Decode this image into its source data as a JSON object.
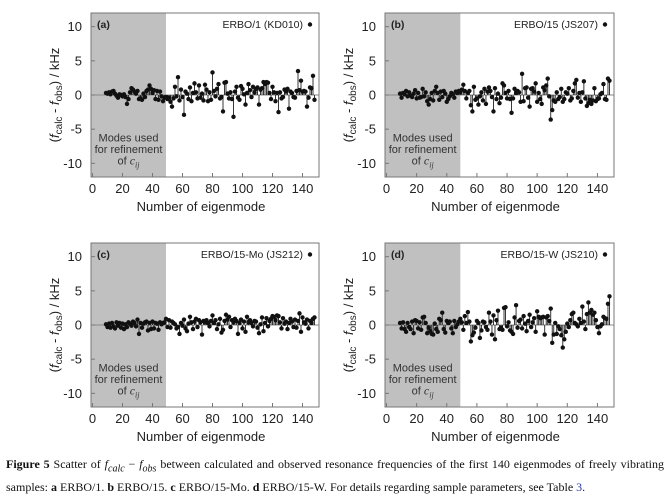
{
  "figure": {
    "caption": {
      "label": "Figure 5",
      "t1": " Scatter of ",
      "f1": "f",
      "s1": "calc",
      "minus": " − ",
      "f2": "f",
      "s2": "obs",
      "t2": " between calculated and observed resonance frequencies of the first 140 eigenmodes of freely vibrating samples: ",
      "a": "a",
      "ta": " ERBO/1. ",
      "b": "b",
      "tb": " ERBO/15. ",
      "c": "c",
      "tc": " ERBO/15-Mo. ",
      "d": "d",
      "td": " ERBO/15-W. For details regarding sample parameters, see Table ",
      "table_ref": "3",
      "end": "."
    }
  },
  "chart_data": [
    {
      "type": "scatter",
      "style": "stem",
      "panel_label": "(a)",
      "legend": "ERBO/1 (KD010)",
      "legend_placement": "top-right",
      "xlabel": "Number of eigenmode",
      "ylabel_parts": [
        "(",
        "f",
        "calc",
        " - ",
        "f",
        "obs",
        ") / kHz"
      ],
      "xlim": [
        -1,
        151
      ],
      "ylim": [
        -12,
        12
      ],
      "xticks": [
        0,
        20,
        40,
        60,
        80,
        100,
        120,
        140
      ],
      "yticks": [
        -10,
        -5,
        0,
        5,
        10
      ],
      "shaded_region": {
        "x": [
          0,
          49
        ],
        "text": [
          "Modes used",
          "for refinement",
          "of "
        ],
        "text_var": "c",
        "text_sub": "ij",
        "color": "#c0c0c0"
      },
      "x_first": 9,
      "x_last": 148,
      "values": [
        0.3,
        0.2,
        0.4,
        0.1,
        0.5,
        0.6,
        0.2,
        -0.1,
        -0.4,
        0.1,
        0.0,
        -0.2,
        0.1,
        -0.3,
        -1.3,
        -0.6,
        0.4,
        1.0,
        0.8,
        0.5,
        0.2,
        0.6,
        -0.6,
        -0.5,
        -0.7,
        0.2,
        -0.3,
        0.6,
        0.8,
        1.4,
        0.9,
        0.3,
        0.7,
        -0.6,
        0.6,
        -0.7,
        0.5,
        -0.2,
        -0.9,
        -0.4,
        -0.3,
        -0.6,
        -0.4,
        -1.0,
        -1.7,
        -0.5,
        1.2,
        -0.2,
        2.6,
        -0.8,
        0.8,
        -0.3,
        -2.9,
        0.5,
        0.2,
        -0.6,
        1.1,
        -0.9,
        0.3,
        1.7,
        0.4,
        -0.5,
        1.4,
        -0.4,
        0.2,
        -0.8,
        1.5,
        0.8,
        -0.9,
        0.4,
        -0.7,
        3.3,
        0.6,
        -0.2,
        0.9,
        1.6,
        -0.5,
        -0.3,
        -2.4,
        1.8,
        1.9,
        0.2,
        -0.5,
        0.4,
        -0.6,
        -3.2,
        0.5,
        1.2,
        -0.4,
        -0.7,
        1.3,
        0.9,
        0.1,
        -1.4,
        0.3,
        1.6,
        0.7,
        -0.3,
        1.2,
        0.4,
        0.9,
        1.1,
        -1.4,
        0.8,
        1.0,
        1.9,
        1.6,
        1.9,
        1.8,
        0.3,
        -0.6,
        1.2,
        0.4,
        -0.9,
        0.3,
        -2.5,
        0.4,
        -0.5,
        -0.3,
        0.8,
        0.5,
        0.9,
        -2.0,
        0.5,
        0.3,
        -0.3,
        -0.4,
        0.6,
        3.5,
        0.7,
        2.1,
        0.5,
        0.6,
        0.5,
        -1.7,
        -0.4,
        1.1,
        1.0,
        2.8,
        -0.7
      ]
    },
    {
      "type": "scatter",
      "style": "stem",
      "panel_label": "(b)",
      "legend": "ERBO/15 (JS207)",
      "legend_placement": "top-right",
      "xlabel": "Number of eigenmode",
      "ylabel_parts": [
        "(",
        "f",
        "calc",
        " - ",
        "f",
        "obs",
        ") / kHz"
      ],
      "xlim": [
        -1,
        151
      ],
      "ylim": [
        -12,
        12
      ],
      "xticks": [
        0,
        20,
        40,
        60,
        80,
        100,
        120,
        140
      ],
      "yticks": [
        -10,
        -5,
        0,
        5,
        10
      ],
      "shaded_region": {
        "x": [
          0,
          49
        ],
        "text": [
          "Modes used",
          "for refinement",
          "of "
        ],
        "text_var": "c",
        "text_sub": "ij",
        "color": "#c0c0c0"
      },
      "x_first": 9,
      "x_last": 148,
      "values": [
        0.2,
        -0.4,
        0.3,
        0.1,
        0.6,
        -0.2,
        0.4,
        -0.1,
        -0.3,
        0.2,
        0.7,
        -0.5,
        0.3,
        -0.4,
        -0.3,
        0.9,
        -0.2,
        0.4,
        -0.9,
        -1.4,
        -0.6,
        0.3,
        -0.8,
        0.6,
        1.2,
        0.3,
        -0.7,
        0.5,
        -0.3,
        0.6,
        0.2,
        -1.0,
        -0.6,
        -0.2,
        0.3,
        0.1,
        -0.4,
        0.5,
        0.3,
        0.6,
        0.4,
        0.8,
        1.5,
        0.6,
        -0.5,
        0.3,
        0.6,
        -1.5,
        -2.4,
        1.2,
        -0.7,
        -0.5,
        -1.4,
        -0.2,
        0.4,
        -0.8,
        0.9,
        -1.3,
        0.5,
        1.1,
        0.6,
        -0.3,
        -2.4,
        1.0,
        -0.6,
        0.2,
        -1.2,
        -0.4,
        1.7,
        1.4,
        0.3,
        -0.5,
        0.6,
        -0.6,
        -2.6,
        -0.5,
        0.9,
        0.3,
        0.6,
        0.4,
        -1.0,
        3.1,
        -0.9,
        1.0,
        1.1,
        -0.4,
        -1.7,
        0.9,
        1.0,
        0.5,
        1.7,
        -1.0,
        0.3,
        -0.6,
        -1.3,
        1.1,
        0.7,
        1.4,
        2.4,
        -0.2,
        -3.6,
        -2.2,
        -0.8,
        -1.0,
        0.4,
        -0.6,
        -0.3,
        0.9,
        -1.0,
        -0.6,
        0.4,
        0.2,
        1.0,
        -0.8,
        -0.5,
        0.6,
        1.7,
        2.2,
        -0.4,
        0.3,
        -1.0,
        0.4,
        2.0,
        -0.5,
        -1.6,
        -1.2,
        -0.7,
        -1.3,
        -0.8,
        1.0,
        -0.9,
        -0.6,
        -0.5,
        0.1,
        0.3,
        1.6,
        -0.6,
        -0.7,
        2.4,
        2.1
      ]
    },
    {
      "type": "scatter",
      "style": "stem",
      "panel_label": "(c)",
      "legend": "ERBO/15-Mo (JS212)",
      "legend_placement": "top-right",
      "xlabel": "Number of eigenmode",
      "ylabel_parts": [
        "(",
        "f",
        "calc",
        " - ",
        "f",
        "obs",
        ") / kHz"
      ],
      "xlim": [
        -1,
        151
      ],
      "ylim": [
        -12,
        12
      ],
      "xticks": [
        0,
        20,
        40,
        60,
        80,
        100,
        120,
        140
      ],
      "yticks": [
        -10,
        -5,
        0,
        5,
        10
      ],
      "shaded_region": {
        "x": [
          0,
          49
        ],
        "text": [
          "Modes used",
          "for refinement",
          "of "
        ],
        "text_var": "c",
        "text_sub": "ij",
        "color": "#c0c0c0"
      },
      "x_first": 9,
      "x_last": 148,
      "values": [
        0.1,
        -0.3,
        0.2,
        -0.4,
        0.3,
        -0.2,
        -0.5,
        0.4,
        -0.1,
        0.3,
        -0.4,
        0.2,
        -0.6,
        0.1,
        -0.3,
        0.4,
        0.2,
        -0.1,
        0.5,
        0.3,
        -0.2,
        0.8,
        -1.3,
        0.3,
        -0.4,
        0.2,
        0.4,
        0.5,
        -0.8,
        0.3,
        -0.6,
        0.5,
        -0.5,
        0.3,
        0.2,
        -0.7,
        0.4,
        0.1,
        0.3,
        0.4,
        0.9,
        -0.3,
        0.7,
        -0.4,
        0.5,
        0.3,
        0.1,
        -0.5,
        -0.3,
        -1.3,
        0.3,
        -0.1,
        0.8,
        -0.5,
        -0.9,
        0.2,
        1.2,
        0.4,
        -0.6,
        0.5,
        0.9,
        -0.3,
        0.7,
        0.4,
        -1.4,
        0.6,
        0.4,
        0.7,
        0.3,
        -0.2,
        0.6,
        1.4,
        0.3,
        0.7,
        -0.6,
        0.1,
        0.9,
        -1.1,
        -0.7,
        0.6,
        1.5,
        0.8,
        1.2,
        -0.3,
        0.7,
        0.4,
        0.9,
        0.6,
        -1.3,
        0.3,
        0.8,
        -0.5,
        0.5,
        -1.0,
        1.2,
        0.4,
        0.7,
        0.3,
        -0.2,
        0.6,
        0.5,
        -0.4,
        -1.2,
        0.1,
        1.1,
        -0.9,
        0.3,
        1.0,
        -0.2,
        0.6,
        0.9,
        1.3,
        1.2,
        0.7,
        1.4,
        1.3,
        0.4,
        -0.5,
        1.0,
        0.2,
        0.5,
        -0.6,
        0.3,
        0.9,
        0.5,
        -0.3,
        0.8,
        -0.4,
        0.6,
        1.7,
        -1.0,
        1.1,
        0.4,
        0.2,
        0.8,
        -0.5,
        0.6,
        0.3,
        0.9,
        1.1
      ]
    },
    {
      "type": "scatter",
      "style": "stem",
      "panel_label": "(d)",
      "legend": "ERBO/15-W (JS210)",
      "legend_placement": "top-right",
      "xlabel": "Number of eigenmode",
      "ylabel_parts": [
        "(",
        "f",
        "calc",
        " - ",
        "f",
        "obs",
        ") / kHz"
      ],
      "xlim": [
        -1,
        151
      ],
      "ylim": [
        -12,
        12
      ],
      "xticks": [
        0,
        20,
        40,
        60,
        80,
        100,
        120,
        140
      ],
      "yticks": [
        -10,
        -5,
        0,
        5,
        10
      ],
      "shaded_region": {
        "x": [
          0,
          49
        ],
        "text": [
          "Modes used",
          "for refinement",
          "of "
        ],
        "text_var": "c",
        "text_sub": "ij",
        "color": "#c0c0c0"
      },
      "x_first": 9,
      "x_last": 148,
      "values": [
        0.3,
        -0.5,
        0.4,
        -0.6,
        -1.0,
        0.3,
        -0.3,
        -0.6,
        0.5,
        -1.2,
        0.7,
        0.6,
        -0.5,
        0.4,
        -0.7,
        1.1,
        1.2,
        0.3,
        -1.2,
        -0.4,
        -0.9,
        -1.3,
        -1.4,
        0.2,
        -0.6,
        -1.0,
        0.9,
        0.7,
        1.8,
        -0.6,
        -1.1,
        0.6,
        0.3,
        0.5,
        -0.5,
        -1.2,
        0.6,
        -0.3,
        0.1,
        0.5,
        0.9,
        0.4,
        -0.7,
        1.3,
        0.3,
        1.9,
        0.5,
        -2.4,
        -1.5,
        -1.1,
        -0.4,
        0.6,
        0.3,
        -1.9,
        -0.8,
        0.5,
        0.4,
        -0.3,
        -0.7,
        1.8,
        0.5,
        -1.4,
        1.4,
        -2.1,
        0.7,
        2.1,
        -0.6,
        -0.4,
        -0.7,
        2.5,
        2.6,
        -0.2,
        0.4,
        -0.8,
        -1.0,
        -1.3,
        1.1,
        2.9,
        -0.4,
        0.6,
        0.8,
        -0.5,
        1.3,
        0.2,
        -0.9,
        0.6,
        1.5,
        -0.3,
        0.4,
        1.0,
        -1.0,
        2.0,
        1.2,
        1.0,
        1.1,
        1.2,
        -1.4,
        1.1,
        1.3,
        0.6,
        2.4,
        -2.6,
        -1.4,
        0.3,
        -1.3,
        -0.2,
        -0.6,
        -1.5,
        -3.3,
        -2.1,
        -1.0,
        0.2,
        -0.3,
        0.7,
        1.6,
        1.8,
        0.3,
        0.1,
        -0.2,
        0.9,
        0.3,
        2.7,
        0.5,
        -0.6,
        1.6,
        3.3,
        1.8,
        2.2,
        1.5,
        1.8,
        0.7,
        -0.3,
        -1.2,
        -0.2,
        0.1,
        1.2,
        1.0,
        0.9,
        3.1,
        4.2
      ]
    }
  ]
}
